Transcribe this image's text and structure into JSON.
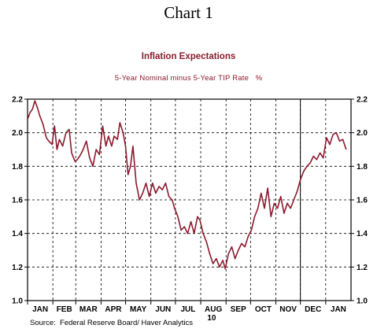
{
  "header": {
    "chart_number": "Chart 1"
  },
  "footer": {
    "source": "Source:  Federal Reserve Board/ Haver Analytics"
  },
  "chart_data": {
    "type": "line",
    "title": "Inflation Expectations",
    "subtitle": "5-Year Nominal minus 5-Year TIP Rate   %",
    "xlabel": "",
    "ylabel": "",
    "year_label": "10",
    "x_range": [
      "2010-01-01",
      "2011-02-01"
    ],
    "ylim": [
      1.0,
      2.2
    ],
    "y_ticks": [
      1.0,
      1.2,
      1.4,
      1.6,
      1.8,
      2.0,
      2.2
    ],
    "y_tick_labels": [
      "1.0",
      "1.2",
      "1.4",
      "1.6",
      "1.8",
      "2.0",
      "2.2"
    ],
    "y_axis_labels_both_sides": true,
    "grid": true,
    "grid_style": "dashed",
    "legend": "none",
    "month_labels": [
      "JAN",
      "FEB",
      "MAR",
      "APR",
      "MAY",
      "JUN",
      "JUL",
      "AUG",
      "SEP",
      "OCT",
      "NOV",
      "DEC",
      "JAN"
    ],
    "month_starts": [
      "2010-01-01",
      "2010-02-01",
      "2010-03-01",
      "2010-04-01",
      "2010-05-01",
      "2010-06-01",
      "2010-07-01",
      "2010-08-01",
      "2010-09-01",
      "2010-10-01",
      "2010-11-01",
      "2010-12-01",
      "2011-01-01"
    ],
    "marker_line": "2010-12-01",
    "line_color": "#8b1a2e",
    "series": [
      {
        "x": [
          "2010-01-01",
          "2010-01-04",
          "2010-01-07",
          "2010-01-10",
          "2010-01-13",
          "2010-01-16",
          "2010-01-20",
          "2010-01-24",
          "2010-01-27",
          "2010-01-31",
          "2010-02-03",
          "2010-02-06",
          "2010-02-09",
          "2010-02-13",
          "2010-02-17",
          "2010-02-21",
          "2010-02-24",
          "2010-02-28",
          "2010-03-03",
          "2010-03-07",
          "2010-03-10",
          "2010-03-14",
          "2010-03-18",
          "2010-03-22",
          "2010-03-26",
          "2010-03-30",
          "2010-04-03",
          "2010-04-07",
          "2010-04-10",
          "2010-04-14",
          "2010-04-17",
          "2010-04-21",
          "2010-04-24",
          "2010-04-28",
          "2010-05-01",
          "2010-05-04",
          "2010-05-07",
          "2010-05-10",
          "2010-05-14",
          "2010-05-18",
          "2010-05-22",
          "2010-05-26",
          "2010-05-30",
          "2010-06-03",
          "2010-06-07",
          "2010-06-11",
          "2010-06-15",
          "2010-06-19",
          "2010-06-23",
          "2010-06-27",
          "2010-06-30",
          "2010-07-04",
          "2010-07-08",
          "2010-07-12",
          "2010-07-16",
          "2010-07-20",
          "2010-07-24",
          "2010-07-28",
          "2010-07-31",
          "2010-08-04",
          "2010-08-08",
          "2010-08-12",
          "2010-08-16",
          "2010-08-20",
          "2010-08-24",
          "2010-08-28",
          "2010-08-31",
          "2010-09-04",
          "2010-09-08",
          "2010-09-12",
          "2010-09-16",
          "2010-09-20",
          "2010-09-24",
          "2010-09-28",
          "2010-10-02",
          "2010-10-06",
          "2010-10-10",
          "2010-10-14",
          "2010-10-18",
          "2010-10-22",
          "2010-10-26",
          "2010-10-30",
          "2010-11-03",
          "2010-11-07",
          "2010-11-11",
          "2010-11-15",
          "2010-11-19",
          "2010-11-23",
          "2010-11-27",
          "2010-12-01",
          "2010-12-05",
          "2010-12-09",
          "2010-12-13",
          "2010-12-17",
          "2010-12-21",
          "2010-12-25",
          "2010-12-29",
          "2011-01-02",
          "2011-01-06",
          "2011-01-10",
          "2011-01-14",
          "2011-01-18",
          "2011-01-22",
          "2011-01-26"
        ],
        "y": [
          2.08,
          2.12,
          2.14,
          2.19,
          2.15,
          2.1,
          2.05,
          1.97,
          1.95,
          1.93,
          2.04,
          1.9,
          1.96,
          1.92,
          2.0,
          2.02,
          1.88,
          1.83,
          1.84,
          1.87,
          1.9,
          1.95,
          1.85,
          1.8,
          1.9,
          1.87,
          2.04,
          1.92,
          1.98,
          1.92,
          1.98,
          1.96,
          2.06,
          2.0,
          1.92,
          1.75,
          1.8,
          1.92,
          1.7,
          1.6,
          1.64,
          1.7,
          1.62,
          1.7,
          1.64,
          1.68,
          1.66,
          1.7,
          1.62,
          1.6,
          1.55,
          1.5,
          1.42,
          1.44,
          1.4,
          1.47,
          1.4,
          1.5,
          1.48,
          1.4,
          1.35,
          1.28,
          1.22,
          1.25,
          1.2,
          1.24,
          1.19,
          1.28,
          1.32,
          1.25,
          1.3,
          1.34,
          1.32,
          1.38,
          1.42,
          1.5,
          1.55,
          1.64,
          1.55,
          1.67,
          1.5,
          1.58,
          1.55,
          1.62,
          1.52,
          1.58,
          1.55,
          1.6,
          1.65,
          1.72,
          1.77,
          1.8,
          1.82,
          1.86,
          1.84,
          1.88,
          1.85,
          1.97,
          1.93,
          1.99,
          2.0,
          1.95,
          1.96,
          1.9
        ]
      }
    ]
  }
}
